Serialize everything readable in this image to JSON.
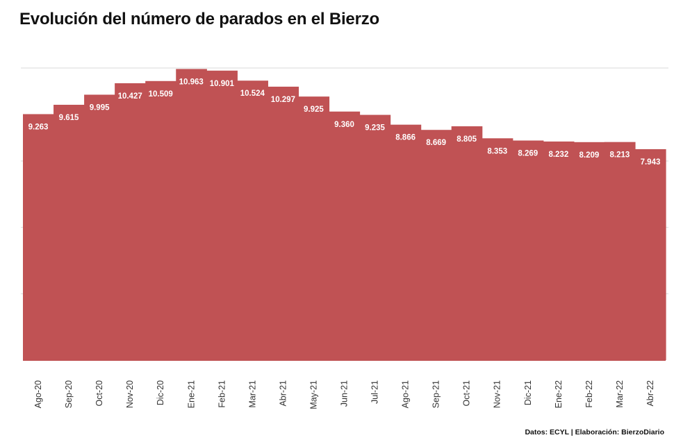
{
  "title": "Evolución del número de parados en el Bierzo",
  "credit": "Datos: ECYL | Elaboración: BierzoDiario",
  "colors": {
    "bar": "#c05254",
    "gridline": "#d9d9d9",
    "axis": "#999999"
  },
  "chart_data": {
    "type": "area",
    "title": "Evolución del número de parados en el Bierzo",
    "xlabel": "",
    "ylabel": "",
    "ylim": [
      0,
      11500
    ],
    "grid": true,
    "legend": "none",
    "categories": [
      "Ago-20",
      "Sep-20",
      "Oct-20",
      "Nov-20",
      "Dic-20",
      "Ene-21",
      "Feb-21",
      "Mar-21",
      "Abr-21",
      "May-21",
      "Jun-21",
      "Jul-21",
      "Ago-21",
      "Sep-21",
      "Oct-21",
      "Nov-21",
      "Dic-21",
      "Ene-22",
      "Feb-22",
      "Mar-22",
      "Abr-22"
    ],
    "values": [
      9263,
      9615,
      9995,
      10427,
      10509,
      10963,
      10901,
      10524,
      10297,
      9925,
      9360,
      9235,
      8866,
      8669,
      8805,
      8353,
      8269,
      8232,
      8209,
      8213,
      7943
    ],
    "value_labels": [
      "9.263",
      "9.615",
      "9.995",
      "10.427",
      "10.509",
      "10.963",
      "10.901",
      "10.524",
      "10.297",
      "9.925",
      "9.360",
      "9.235",
      "8.866",
      "8.669",
      "8.805",
      "8.353",
      "8.269",
      "8.232",
      "8.209",
      "8.213",
      "7.943"
    ]
  }
}
